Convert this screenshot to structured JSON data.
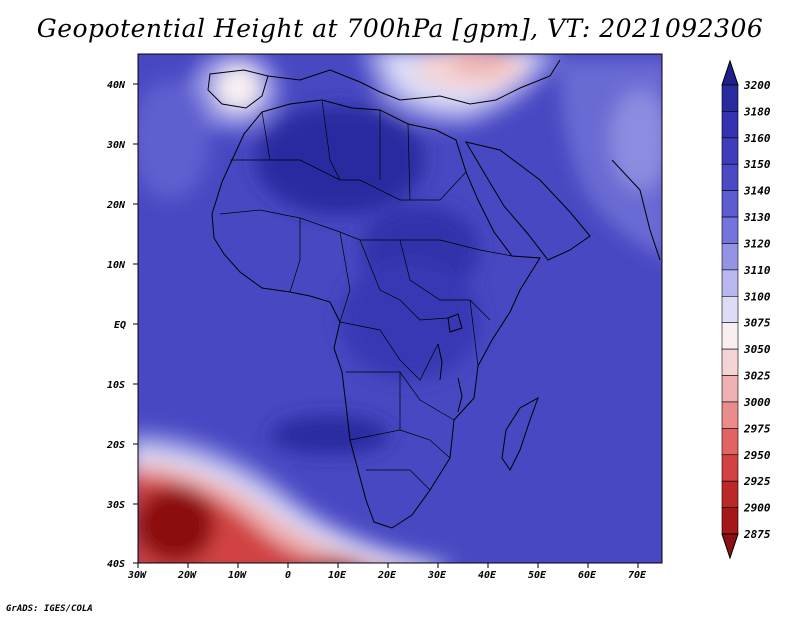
{
  "title": "Geopotential Height at 700hPa [gpm], VT: 2021092306",
  "footer": "GrADS: IGES/COLA",
  "lon_labels": [
    "30W",
    "20W",
    "10W",
    "0",
    "10E",
    "20E",
    "30E",
    "40E",
    "50E",
    "60E",
    "70E"
  ],
  "lat_labels": [
    "40N",
    "30N",
    "20N",
    "10N",
    "EQ",
    "10S",
    "20S",
    "30S",
    "40S"
  ],
  "colorbar": {
    "levels": [
      "3200",
      "3180",
      "3160",
      "3150",
      "3140",
      "3130",
      "3120",
      "3110",
      "3100",
      "3075",
      "3050",
      "3025",
      "3000",
      "2975",
      "2950",
      "2925",
      "2900",
      "2875"
    ],
    "colors": [
      "#20208c",
      "#2a2aa0",
      "#3434b0",
      "#3e3eba",
      "#4a4ac4",
      "#5c5cd0",
      "#7474da",
      "#9494e4",
      "#b8b8ee",
      "#dcdcf6",
      "#f8f0f0",
      "#f4d4d4",
      "#eeb0b0",
      "#e88c8c",
      "#e06464",
      "#d24242",
      "#bc2828",
      "#a41818",
      "#8c1010"
    ]
  }
}
